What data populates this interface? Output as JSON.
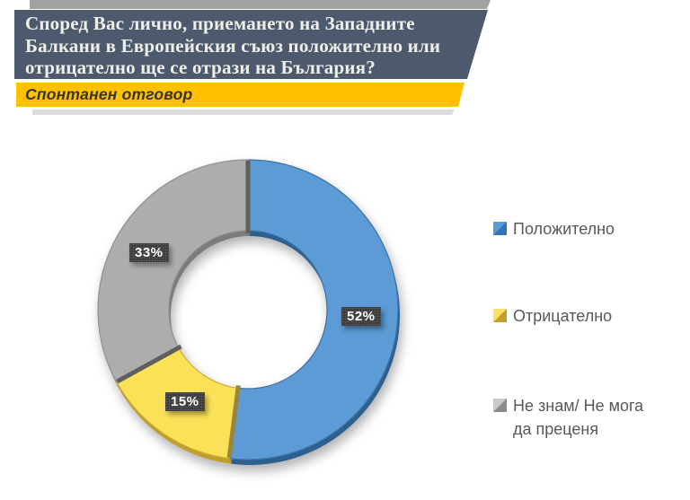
{
  "page": {
    "background": "#FFFFFF"
  },
  "header": {
    "title_lines": [
      "Според Вас лично, приемането на Западните",
      "Балкани в Европейския съюз положително или",
      "отрицателно ще се отрази на България?"
    ],
    "title_bg": "#4D5A6E",
    "title_color": "#EFEFEA",
    "subtitle": "Спонтанен отговор",
    "subtitle_bg": "#FFC000",
    "subtitle_color": "#343434"
  },
  "chart_data": {
    "type": "pie",
    "subtype": "donut",
    "direction": "clockwise",
    "start_angle_deg": 0,
    "legend_position": "right",
    "title": "Според Вас лично, приемането на Западните Балкани в Европейския съюз положително или отрицателно ще се отрази на България?",
    "subtitle": "Спонтанен отговор",
    "slices": [
      {
        "name": "Положително",
        "value": 52,
        "label": "52%",
        "color": "#5B9BD5",
        "depth_color": "#2E608F",
        "edge_color": "#3C72A6",
        "legend_light": "#5B9BD5",
        "legend_dark": "#2E75B6"
      },
      {
        "name": "Отрицателно",
        "value": 15,
        "label": "15%",
        "color": "#FAE159",
        "depth_color": "#BF9E2D",
        "edge_color": "#CCAB36",
        "legend_light": "#FFE066",
        "legend_dark": "#BFA02F"
      },
      {
        "name": "Не знам/ Не мога да преценя",
        "value": 33,
        "label": "33%",
        "color": "#ADADAD",
        "depth_color": "#7B7B7B",
        "edge_color": "#909090",
        "legend_light": "#C9C9C9",
        "legend_dark": "#8A8A8A"
      }
    ],
    "separator_colors": [
      "#5E5E5E",
      "#9A853C",
      "#5E5E5E"
    ],
    "data_label_bg": "#353535",
    "data_label_color": "#FFFFFF"
  }
}
